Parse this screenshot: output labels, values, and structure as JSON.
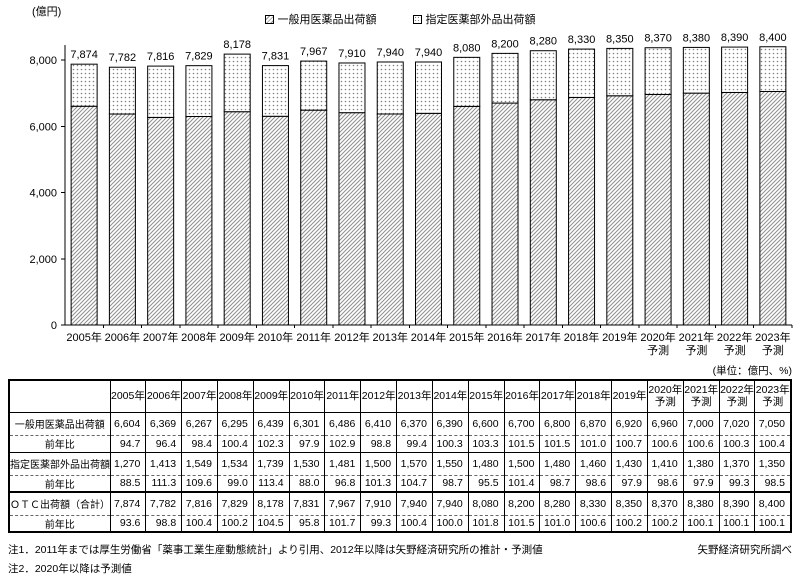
{
  "chart_data": {
    "type": "bar",
    "stacked": true,
    "unit_label": "(億円)",
    "ylim": [
      0,
      8000
    ],
    "ytick_step": 2000,
    "grid": false,
    "legend_position": "top-center",
    "categories": [
      "2005年",
      "2006年",
      "2007年",
      "2008年",
      "2009年",
      "2010年",
      "2011年",
      "2012年",
      "2013年",
      "2014年",
      "2015年",
      "2016年",
      "2017年",
      "2018年",
      "2019年",
      "2020年\n予測",
      "2021年\n予測",
      "2022年\n予測",
      "2023年\n予測"
    ],
    "series": [
      {
        "name": "一般用医薬品出荷額",
        "pattern": "hatch",
        "values": [
          6604,
          6369,
          6267,
          6295,
          6439,
          6301,
          6486,
          6410,
          6370,
          6390,
          6600,
          6700,
          6800,
          6870,
          6920,
          6960,
          7000,
          7020,
          7050
        ]
      },
      {
        "name": "指定医薬部外品出荷額",
        "pattern": "dots",
        "values": [
          1270,
          1413,
          1549,
          1534,
          1739,
          1530,
          1481,
          1500,
          1570,
          1550,
          1480,
          1500,
          1480,
          1460,
          1430,
          1410,
          1380,
          1370,
          1350
        ]
      }
    ],
    "totals": [
      7874,
      7782,
      7816,
      7829,
      8178,
      7831,
      7967,
      7910,
      7940,
      7940,
      8080,
      8200,
      8280,
      8330,
      8350,
      8370,
      8380,
      8390,
      8400
    ]
  },
  "table": {
    "unit_note": "(単位：億円、%)",
    "corner_header": "",
    "col_headers": [
      "2005年",
      "2006年",
      "2007年",
      "2008年",
      "2009年",
      "2010年",
      "2011年",
      "2012年",
      "2013年",
      "2014年",
      "2015年",
      "2016年",
      "2017年",
      "2018年",
      "2019年",
      "2020年\n予測",
      "2021年\n予測",
      "2022年\n予測",
      "2023年\n予測"
    ],
    "rows": [
      {
        "label": "一般用医薬品出荷額",
        "values": [
          "6,604",
          "6,369",
          "6,267",
          "6,295",
          "6,439",
          "6,301",
          "6,486",
          "6,410",
          "6,370",
          "6,390",
          "6,600",
          "6,700",
          "6,800",
          "6,870",
          "6,920",
          "6,960",
          "7,000",
          "7,020",
          "7,050"
        ]
      },
      {
        "label": "前年比",
        "values": [
          "94.7",
          "96.4",
          "98.4",
          "100.4",
          "102.3",
          "97.9",
          "102.9",
          "98.8",
          "99.4",
          "100.3",
          "103.3",
          "101.5",
          "101.5",
          "101.0",
          "100.7",
          "100.6",
          "100.6",
          "100.3",
          "100.4"
        ]
      },
      {
        "label": "指定医薬部外品出荷額",
        "values": [
          "1,270",
          "1,413",
          "1,549",
          "1,534",
          "1,739",
          "1,530",
          "1,481",
          "1,500",
          "1,570",
          "1,550",
          "1,480",
          "1,500",
          "1,480",
          "1,460",
          "1,430",
          "1,410",
          "1,380",
          "1,370",
          "1,350"
        ]
      },
      {
        "label": "前年比",
        "values": [
          "88.5",
          "111.3",
          "109.6",
          "99.0",
          "113.4",
          "88.0",
          "96.8",
          "101.3",
          "104.7",
          "98.7",
          "95.5",
          "101.4",
          "98.7",
          "98.6",
          "97.9",
          "98.6",
          "97.9",
          "99.3",
          "98.5"
        ]
      },
      {
        "label": "ＯＴＣ出荷額（合計）",
        "values": [
          "7,874",
          "7,782",
          "7,816",
          "7,829",
          "8,178",
          "7,831",
          "7,967",
          "7,910",
          "7,940",
          "7,940",
          "8,080",
          "8,200",
          "8,280",
          "8,330",
          "8,350",
          "8,370",
          "8,380",
          "8,390",
          "8,400"
        ]
      },
      {
        "label": "前年比",
        "values": [
          "93.6",
          "98.8",
          "100.4",
          "100.2",
          "104.5",
          "95.8",
          "101.7",
          "99.3",
          "100.4",
          "100.0",
          "101.8",
          "101.5",
          "101.0",
          "100.6",
          "100.2",
          "100.2",
          "100.1",
          "100.1",
          "100.1"
        ]
      }
    ]
  },
  "footnotes": {
    "note1": "注1．2011年までは厚生労働省「薬事工業生産動態統計」より引用、2012年以降は矢野経済研究所の推計・予測値",
    "note2": "注2．2020年以降は予測値",
    "source": "矢野経済研究所調べ"
  }
}
